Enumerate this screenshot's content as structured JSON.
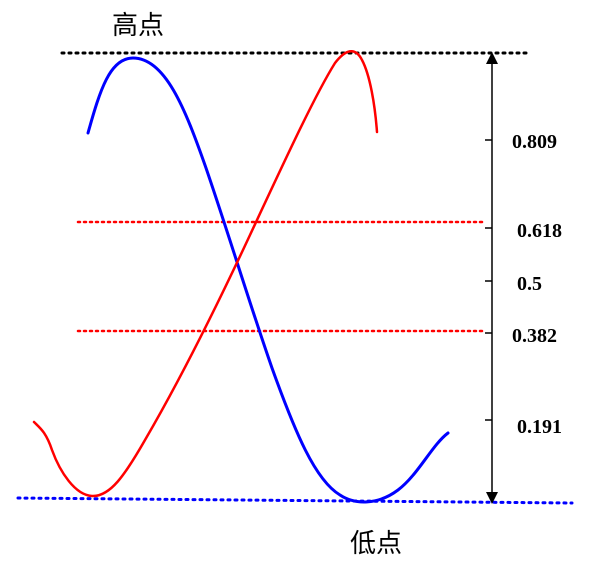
{
  "labels": {
    "high": "高点",
    "low": "低点"
  },
  "levels": [
    {
      "value": "0.809"
    },
    {
      "value": "0.618"
    },
    {
      "value": "0.5"
    },
    {
      "value": "0.382"
    },
    {
      "value": "0.191"
    }
  ],
  "colors": {
    "high_line": "#000000",
    "low_line": "#0000ff",
    "fib_line": "#ff0000",
    "blue_wave": "#0000ff",
    "red_wave": "#ff0000",
    "axis": "#000000"
  }
}
